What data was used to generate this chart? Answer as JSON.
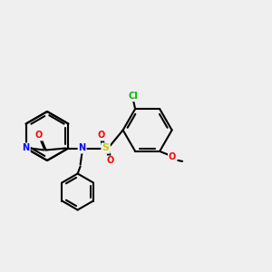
{
  "background_color": "#efefef",
  "bond_color": "#000000",
  "atom_colors": {
    "N": "#0000ff",
    "O": "#ff0000",
    "S": "#cccc00",
    "Cl": "#00bb00"
  },
  "figsize": [
    3.0,
    3.0
  ],
  "dpi": 100,
  "lw": 1.5
}
